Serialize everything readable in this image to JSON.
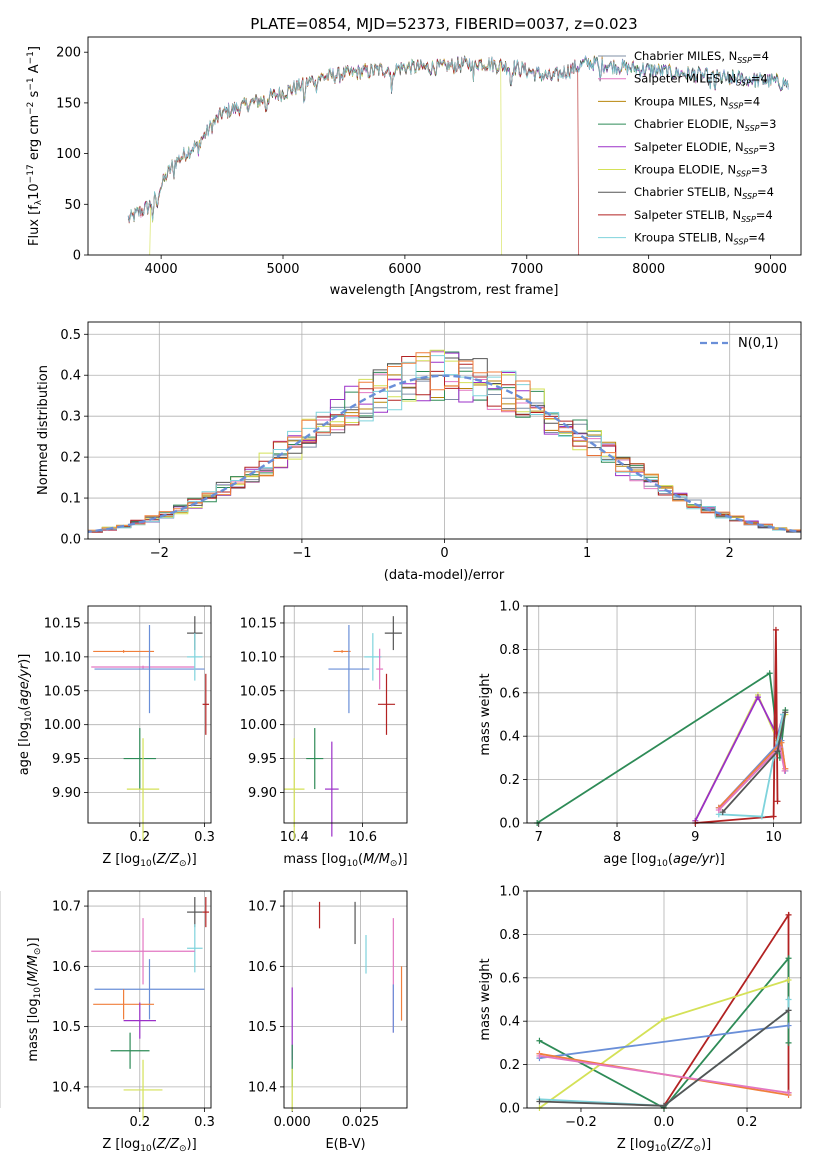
{
  "colors": {
    "chabrier_miles": "#7f8fa6",
    "salpeter_miles": "#e377c2",
    "kroupa_miles": "#b8860b",
    "chabrier_elodie": "#2e8b57",
    "salpeter_elodie": "#9b30c8",
    "kroupa_elodie": "#d4e157",
    "chabrier_stelib": "#555555",
    "salpeter_stelib": "#b22222",
    "kroupa_stelib": "#7fd3dc",
    "blue": "#6a8fd8",
    "orange": "#f07f3c",
    "grid": "#b0b0b0"
  },
  "chart_data": [
    {
      "type": "line",
      "title": "PLATE=0854, MJD=52373, FIBERID=0037, z=0.023",
      "xlabel": "wavelength [Angstrom, rest frame]",
      "ylabel": "Flux [f_λ10^-17 erg cm^-2 s^-1 A^-1]",
      "xlim": [
        3400,
        9250
      ],
      "ylim": [
        0,
        215
      ],
      "xticks": [
        4000,
        5000,
        6000,
        7000,
        8000,
        9000
      ],
      "yticks": [
        0,
        50,
        100,
        150,
        200
      ],
      "grid": false,
      "legend_position": "top-right",
      "spectrum_range": [
        3730,
        9150
      ],
      "anchors": [
        [
          3730,
          35
        ],
        [
          3900,
          48
        ],
        [
          3960,
          60
        ],
        [
          4100,
          90
        ],
        [
          4300,
          110
        ],
        [
          4500,
          140
        ],
        [
          4800,
          152
        ],
        [
          5000,
          160
        ],
        [
          5300,
          175
        ],
        [
          5600,
          180
        ],
        [
          6000,
          185
        ],
        [
          6300,
          185
        ],
        [
          6600,
          190
        ],
        [
          6900,
          185
        ],
        [
          7200,
          175
        ],
        [
          7500,
          190
        ],
        [
          7800,
          185
        ],
        [
          8200,
          180
        ],
        [
          8600,
          175
        ],
        [
          9000,
          172
        ],
        [
          9150,
          168
        ]
      ],
      "absorption": [
        [
          3934,
          25
        ],
        [
          3968,
          20
        ],
        [
          4102,
          12
        ],
        [
          4305,
          14
        ],
        [
          4861,
          12
        ],
        [
          5175,
          22
        ],
        [
          5270,
          8
        ],
        [
          5893,
          30
        ],
        [
          6563,
          16
        ],
        [
          6870,
          22
        ],
        [
          7600,
          18
        ],
        [
          8500,
          12
        ],
        [
          8542,
          14
        ],
        [
          8662,
          12
        ]
      ],
      "cutoffs": [
        {
          "series": 5,
          "lo": 3910,
          "hi": 6790
        },
        {
          "series": 7,
          "lo": 3730,
          "hi": 7420
        }
      ],
      "series": [
        {
          "name": "Chabrier MILES, N_SSP=4",
          "color": "chabrier_miles"
        },
        {
          "name": "Salpeter MILES, N_SSP=4",
          "color": "salpeter_miles"
        },
        {
          "name": "Kroupa MILES, N_SSP=4",
          "color": "kroupa_miles"
        },
        {
          "name": "Chabrier ELODIE, N_SSP=3",
          "color": "chabrier_elodie"
        },
        {
          "name": "Salpeter ELODIE, N_SSP=3",
          "color": "salpeter_elodie"
        },
        {
          "name": "Kroupa ELODIE, N_SSP=3",
          "color": "kroupa_elodie"
        },
        {
          "name": "Chabrier STELIB, N_SSP=4",
          "color": "chabrier_stelib"
        },
        {
          "name": "Salpeter STELIB, N_SSP=4",
          "color": "salpeter_stelib"
        },
        {
          "name": "Kroupa STELIB, N_SSP=4",
          "color": "kroupa_stelib"
        }
      ]
    },
    {
      "type": "line",
      "xlabel": "(data-model)/error",
      "ylabel": "Normed distribution",
      "xlim": [
        -2.5,
        2.5
      ],
      "ylim": [
        0,
        0.53
      ],
      "xticks": [
        -2,
        -1,
        0,
        1,
        2
      ],
      "yticks": [
        0.0,
        0.1,
        0.2,
        0.3,
        0.4,
        0.5
      ],
      "grid": true,
      "legend_position": "top-right",
      "gaussian": {
        "label": "N(0,1)",
        "color": "blue"
      },
      "bin_width": 0.1,
      "histogram_colors": [
        "chabrier_miles",
        "salpeter_miles",
        "kroupa_miles",
        "chabrier_elodie",
        "salpeter_elodie",
        "kroupa_elodie",
        "chabrier_stelib",
        "salpeter_stelib",
        "kroupa_stelib",
        "orange"
      ]
    },
    {
      "type": "scatter",
      "xlabel": "Z [log10(Z/Z☉)]",
      "ylabel": "age  [log10(age/yr)]",
      "xlim": [
        0.12,
        0.31
      ],
      "ylim": [
        9.855,
        10.175
      ],
      "xticks": [
        "0.2",
        "0.3"
      ],
      "yticks": [
        "9.90",
        "9.95",
        "10.00",
        "10.05",
        "10.10",
        "10.15"
      ],
      "grid": true,
      "points": [
        {
          "x": 0.175,
          "y": 10.108,
          "xerr": 0.047,
          "yerr": 0.002,
          "color": "orange"
        },
        {
          "x": 0.205,
          "y": 10.085,
          "xerr": 0.08,
          "yerr": 0.002,
          "color": "salpeter_miles"
        },
        {
          "x": 0.215,
          "y": 10.082,
          "xerr": 0.085,
          "yerr": 0.065,
          "color": "blue"
        },
        {
          "x": 0.285,
          "y": 10.135,
          "xerr": 0.012,
          "yerr": 0.025,
          "color": "chabrier_stelib"
        },
        {
          "x": 0.285,
          "y": 10.1,
          "xerr": 0.012,
          "yerr": 0.035,
          "color": "kroupa_stelib"
        },
        {
          "x": 0.302,
          "y": 10.03,
          "xerr": 0.005,
          "yerr": 0.045,
          "color": "salpeter_stelib"
        },
        {
          "x": 0.2,
          "y": 9.95,
          "xerr": 0.025,
          "yerr": 0.045,
          "color": "chabrier_elodie"
        },
        {
          "x": 0.205,
          "y": 9.905,
          "xerr": 0.025,
          "yerr": 0.075,
          "color": "kroupa_elodie"
        }
      ]
    },
    {
      "type": "scatter",
      "xlabel": "mass [log10(M/M☉)]",
      "xlim": [
        10.37,
        10.73
      ],
      "ylim": [
        9.855,
        10.175
      ],
      "xticks": [
        "10.4",
        "10.6"
      ],
      "yticks": [
        "9.90",
        "9.95",
        "10.00",
        "10.05",
        "10.10",
        "10.15"
      ],
      "grid": true,
      "points": [
        {
          "x": 10.54,
          "y": 10.108,
          "xerr": 0.025,
          "yerr": 0.002,
          "color": "orange"
        },
        {
          "x": 10.63,
          "y": 10.1,
          "xerr": 0.025,
          "yerr": 0.035,
          "color": "kroupa_stelib"
        },
        {
          "x": 10.56,
          "y": 10.082,
          "xerr": 0.06,
          "yerr": 0.065,
          "color": "blue"
        },
        {
          "x": 10.69,
          "y": 10.135,
          "xerr": 0.025,
          "yerr": 0.025,
          "color": "chabrier_stelib"
        },
        {
          "x": 10.67,
          "y": 10.03,
          "xerr": 0.025,
          "yerr": 0.045,
          "color": "salpeter_stelib"
        },
        {
          "x": 10.65,
          "y": 10.082,
          "xerr": 0.01,
          "yerr": 0.03,
          "color": "salpeter_miles"
        },
        {
          "x": 10.46,
          "y": 9.95,
          "xerr": 0.025,
          "yerr": 0.045,
          "color": "chabrier_elodie"
        },
        {
          "x": 10.51,
          "y": 9.905,
          "xerr": 0.02,
          "yerr": 0.07,
          "color": "salpeter_elodie"
        },
        {
          "x": 10.4,
          "y": 9.905,
          "xerr": 0.03,
          "yerr": 0.075,
          "color": "kroupa_elodie"
        }
      ]
    },
    {
      "type": "line",
      "xlabel": "age  [log10(age/yr)]",
      "ylabel": "mass weight",
      "xlim": [
        6.85,
        10.35
      ],
      "ylim": [
        0,
        1.0
      ],
      "xticks": [
        "7",
        "8",
        "9",
        "10"
      ],
      "yticks": [
        "0.0",
        "0.2",
        "0.4",
        "0.6",
        "0.8",
        "1.0"
      ],
      "grid": true,
      "series": [
        {
          "color": "chabrier_elodie",
          "x": [
            6.98,
            9.95,
            10.08,
            10.15
          ],
          "y": [
            0.0,
            0.69,
            0.3,
            0.52
          ]
        },
        {
          "color": "kroupa_elodie",
          "x": [
            9.0,
            9.8,
            10.05,
            10.15
          ],
          "y": [
            0.01,
            0.59,
            0.38,
            0.5
          ]
        },
        {
          "color": "salpeter_elodie",
          "x": [
            9.0,
            9.8,
            10.05,
            10.12
          ],
          "y": [
            0.01,
            0.58,
            0.4,
            0.5
          ]
        },
        {
          "color": "salpeter_stelib",
          "x": [
            9.0,
            10.0,
            10.03,
            10.05
          ],
          "y": [
            0.0,
            0.03,
            0.89,
            0.1
          ]
        },
        {
          "color": "kroupa_stelib",
          "x": [
            9.3,
            9.85,
            10.0,
            10.12
          ],
          "y": [
            0.04,
            0.03,
            0.3,
            0.5
          ]
        },
        {
          "color": "blue",
          "x": [
            9.3,
            10.1,
            10.15
          ],
          "y": [
            0.07,
            0.38,
            0.24
          ]
        },
        {
          "color": "orange",
          "x": [
            9.3,
            10.1,
            10.15
          ],
          "y": [
            0.07,
            0.37,
            0.25
          ]
        },
        {
          "color": "salpeter_miles",
          "x": [
            9.3,
            10.08,
            10.14
          ],
          "y": [
            0.06,
            0.35,
            0.24
          ]
        },
        {
          "color": "chabrier_stelib",
          "x": [
            9.35,
            10.05,
            10.15
          ],
          "y": [
            0.05,
            0.33,
            0.51
          ]
        }
      ]
    },
    {
      "type": "scatter",
      "xlabel": "Z [log10(Z/Z☉)]",
      "ylabel": "mass [log10(M/M☉)]",
      "xlim": [
        0.12,
        0.31
      ],
      "ylim": [
        10.365,
        10.725
      ],
      "xticks": [
        "0.2",
        "0.3"
      ],
      "yticks": [
        "10.4",
        "10.5",
        "10.6",
        "10.7"
      ],
      "grid": true,
      "points": [
        {
          "x": 0.285,
          "y": 10.69,
          "xerr": 0.012,
          "yerr": 0.025,
          "color": "chabrier_stelib"
        },
        {
          "x": 0.302,
          "y": 10.69,
          "xerr": 0.005,
          "yerr": 0.025,
          "color": "salpeter_stelib"
        },
        {
          "x": 0.285,
          "y": 10.63,
          "xerr": 0.012,
          "yerr": 0.04,
          "color": "kroupa_stelib"
        },
        {
          "x": 0.205,
          "y": 10.625,
          "xerr": 0.08,
          "yerr": 0.055,
          "color": "salpeter_miles"
        },
        {
          "x": 0.215,
          "y": 10.562,
          "xerr": 0.085,
          "yerr": 0.05,
          "color": "blue"
        },
        {
          "x": 0.175,
          "y": 10.537,
          "xerr": 0.047,
          "yerr": 0.025,
          "color": "orange"
        },
        {
          "x": 0.2,
          "y": 10.51,
          "xerr": 0.025,
          "yerr": 0.03,
          "color": "salpeter_elodie"
        },
        {
          "x": 0.185,
          "y": 10.46,
          "xerr": 0.03,
          "yerr": 0.03,
          "color": "chabrier_elodie"
        },
        {
          "x": 0.205,
          "y": 10.395,
          "xerr": 0.03,
          "yerr": 0.05,
          "color": "kroupa_elodie"
        }
      ]
    },
    {
      "type": "scatter",
      "xlabel": "E(B-V)",
      "xlim": [
        -0.003,
        0.042
      ],
      "ylim": [
        10.365,
        10.725
      ],
      "xticks": [
        "0.000",
        "0.025"
      ],
      "yticks": [
        "10.4",
        "10.5",
        "10.6",
        "10.7"
      ],
      "grid": true,
      "points": [
        {
          "x": 0.01,
          "y": 10.685,
          "yerr": 0.022,
          "color": "salpeter_stelib"
        },
        {
          "x": 0.023,
          "y": 10.672,
          "yerr": 0.035,
          "color": "chabrier_stelib"
        },
        {
          "x": 0.027,
          "y": 10.62,
          "yerr": 0.032,
          "color": "kroupa_stelib"
        },
        {
          "x": 0.037,
          "y": 10.585,
          "yerr": 0.095,
          "color": "salpeter_miles"
        },
        {
          "x": 0.04,
          "y": 10.555,
          "yerr": 0.045,
          "color": "orange"
        },
        {
          "x": 0.037,
          "y": 10.53,
          "yerr": 0.04,
          "color": "blue"
        },
        {
          "x": 0.0,
          "y": 10.505,
          "yerr": 0.06,
          "color": "salpeter_elodie"
        },
        {
          "x": 0.0,
          "y": 10.435,
          "yerr": 0.035,
          "color": "chabrier_elodie"
        },
        {
          "x": 0.0,
          "y": 10.395,
          "yerr": 0.035,
          "color": "kroupa_elodie"
        }
      ]
    },
    {
      "type": "line",
      "xlabel": "Z [log10(Z/Z☉)]",
      "ylabel": "mass weight",
      "xlim": [
        -0.33,
        0.33
      ],
      "ylim": [
        0,
        1.0
      ],
      "xticks": [
        "−0.2",
        "0.0",
        "0.2"
      ],
      "yticks": [
        "0.0",
        "0.2",
        "0.4",
        "0.6",
        "0.8",
        "1.0"
      ],
      "grid": true,
      "series": [
        {
          "color": "salpeter_stelib",
          "x": [
            0.0,
            0.0,
            0.3,
            0.3
          ],
          "y": [
            0.0,
            0.01,
            0.89,
            0.07
          ]
        },
        {
          "color": "chabrier_elodie",
          "x": [
            -0.3,
            0.0,
            0.3,
            0.3
          ],
          "y": [
            0.31,
            0.0,
            0.69,
            0.3
          ]
        },
        {
          "color": "kroupa_elodie",
          "x": [
            -0.3,
            0.0,
            0.3
          ],
          "y": [
            0.0,
            0.41,
            0.59
          ]
        },
        {
          "color": "blue",
          "x": [
            -0.3,
            0.3
          ],
          "y": [
            0.23,
            0.38
          ]
        },
        {
          "color": "orange",
          "x": [
            -0.3,
            0.3
          ],
          "y": [
            0.25,
            0.06
          ]
        },
        {
          "color": "salpeter_miles",
          "x": [
            -0.3,
            0.3
          ],
          "y": [
            0.24,
            0.07
          ]
        },
        {
          "color": "kroupa_stelib",
          "x": [
            -0.3,
            0.0,
            0.3,
            0.3
          ],
          "y": [
            0.04,
            0.01,
            0.45,
            0.5
          ]
        },
        {
          "color": "chabrier_stelib",
          "x": [
            -0.3,
            0.0,
            0.3
          ],
          "y": [
            0.03,
            0.01,
            0.45
          ]
        }
      ]
    }
  ]
}
